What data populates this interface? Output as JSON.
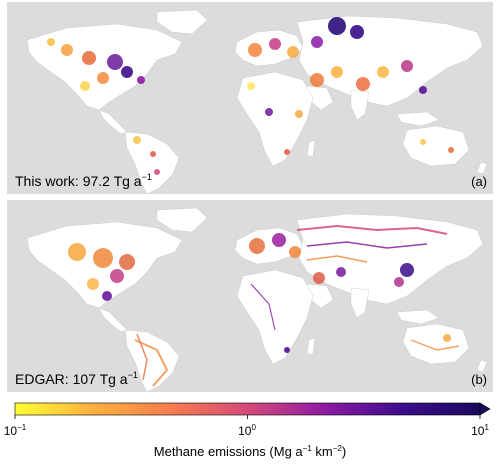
{
  "panels": [
    {
      "id": "a",
      "caption_prefix": "This work: ",
      "caption_value": "97.2",
      "caption_unit": "Tg a",
      "caption_exp": "−1",
      "letter": "(a)"
    },
    {
      "id": "b",
      "caption_prefix": "EDGAR: ",
      "caption_value": "107",
      "caption_unit": "Tg a",
      "caption_exp": "−1",
      "letter": "(b)"
    }
  ],
  "colorbar": {
    "title_part1": "Methane emissions (Mg a",
    "title_exp1": "−1",
    "title_part2": " km",
    "title_exp2": "−2",
    "title_part3": ")",
    "scale": "log",
    "min": 0.1,
    "max": 10,
    "extend": "max",
    "ticks": [
      {
        "base": "10",
        "exp": "−1"
      },
      {
        "base": "10",
        "exp": "0"
      },
      {
        "base": "10",
        "exp": "1"
      }
    ],
    "colors": [
      "#ffff33",
      "#fdb040",
      "#f57d4e",
      "#d44b7a",
      "#8e1aa3",
      "#3c0c8c",
      "#1a0a5e"
    ]
  },
  "map": {
    "ocean_color": "#dcdcdc",
    "land_color": "#ffffff",
    "border_color": "#bfbfbf"
  }
}
